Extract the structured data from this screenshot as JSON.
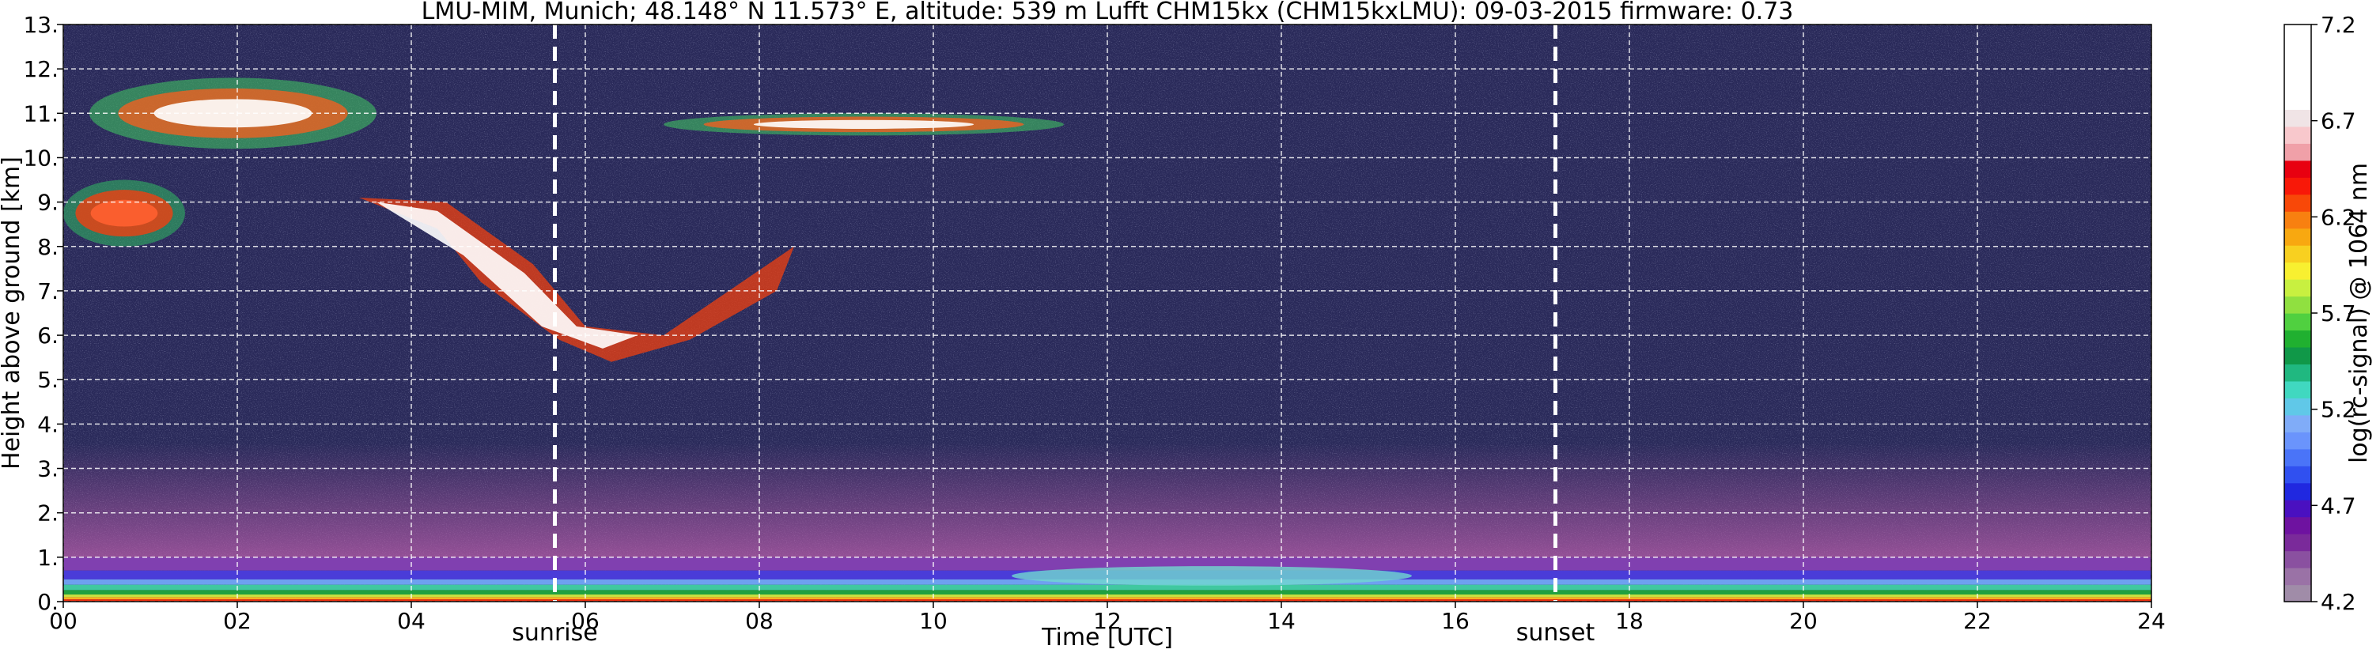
{
  "chart_data": {
    "type": "heatmap",
    "title": "LMU-MIM, Munich; 48.148° N 11.573° E, altitude: 539 m    Lufft CHM15kx (CHM15kxLMU): 09-03-2015    firmware: 0.73",
    "xlabel": "Time [UTC]",
    "ylabel": "Height above ground [km]",
    "colorbar_label": "log(rc-signal) @ 1064 nm",
    "xlim": [
      0,
      24
    ],
    "ylim": [
      0,
      13
    ],
    "clim": [
      4.2,
      7.2
    ],
    "x_ticks": [
      0,
      2,
      4,
      6,
      8,
      10,
      12,
      14,
      16,
      18,
      20,
      22,
      24
    ],
    "x_tick_labels": [
      "00",
      "02",
      "04",
      "06",
      "08",
      "10",
      "12",
      "14",
      "16",
      "18",
      "20",
      "22",
      "24"
    ],
    "y_ticks": [
      0,
      1,
      2,
      3,
      4,
      5,
      6,
      7,
      8,
      9,
      10,
      11,
      12,
      13
    ],
    "y_tick_labels": [
      "0.",
      "1.",
      "2.",
      "3.",
      "4.",
      "5.",
      "6.",
      "7.",
      "8.",
      "9.",
      "10.",
      "11.",
      "12.",
      "13."
    ],
    "colorbar_ticks": [
      4.2,
      4.7,
      5.2,
      5.7,
      6.2,
      6.7,
      7.2
    ],
    "colorbar_tick_labels": [
      "4.2",
      "4.7",
      "5.2",
      "5.7",
      "6.2",
      "6.7",
      "7.2"
    ],
    "grid": true,
    "background_color": "#2a2a5a",
    "annotations": [
      {
        "label": "sunrise",
        "x": 5.65,
        "line_style": "dashed",
        "color": "#ffffff"
      },
      {
        "label": "sunset",
        "x": 17.15,
        "line_style": "dashed",
        "color": "#ffffff"
      }
    ],
    "features": [
      {
        "kind": "boundary-layer",
        "x_range": [
          0,
          24
        ],
        "height_range": [
          0.0,
          1.0
        ]
      },
      {
        "kind": "cirrus",
        "x_range": [
          0.3,
          3.6
        ],
        "height_range": [
          10.2,
          11.8
        ]
      },
      {
        "kind": "cirrus",
        "x_range": [
          6.9,
          11.5
        ],
        "height_range": [
          10.5,
          11.0
        ]
      },
      {
        "kind": "cloud",
        "x_range": [
          0.0,
          1.4
        ],
        "height_range": [
          8.0,
          9.5
        ]
      },
      {
        "kind": "descending-cloud",
        "x_range": [
          3.4,
          8.4
        ],
        "height_range": [
          5.2,
          9.1
        ]
      }
    ]
  },
  "colorbar": {
    "colors": [
      "#a08ca8",
      "#9a72a6",
      "#8a50a0",
      "#7a2a9a",
      "#6e12a0",
      "#4a10c0",
      "#2028e0",
      "#3050f0",
      "#4a74f8",
      "#6a94fc",
      "#80acf8",
      "#60c8e8",
      "#40d8c0",
      "#20b880",
      "#109848",
      "#20b030",
      "#50d040",
      "#90e040",
      "#c8f040",
      "#f8f030",
      "#f8d020",
      "#f8a810",
      "#f88010",
      "#f84808",
      "#f81808",
      "#e80010",
      "#f0a0a8",
      "#f8c8cc",
      "#f0e4e6",
      "#ffffff",
      "#ffffff",
      "#ffffff",
      "#ffffff",
      "#ffffff"
    ]
  }
}
